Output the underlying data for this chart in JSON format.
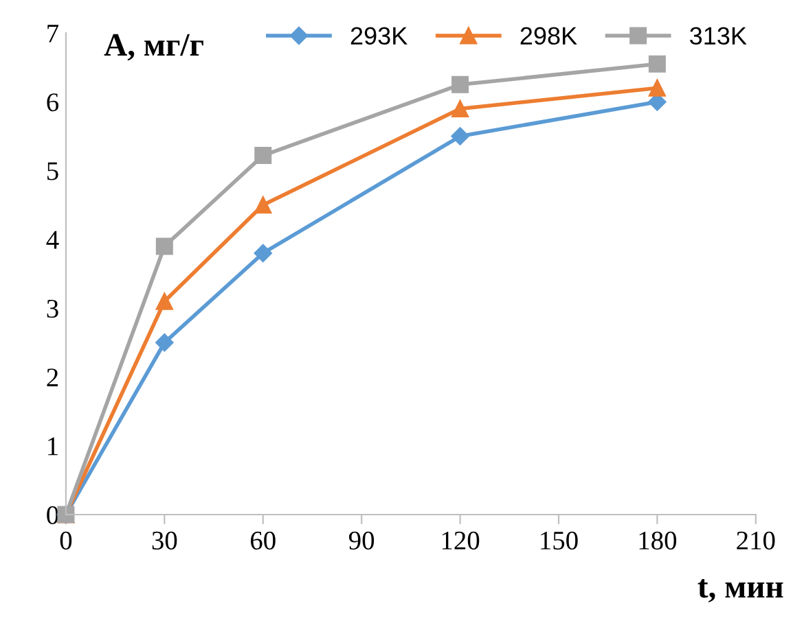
{
  "chart_data": {
    "type": "line",
    "xlabel": "t, мин",
    "ylabel": "A, мг/г",
    "x": [
      0,
      30,
      60,
      120,
      180
    ],
    "series": [
      {
        "name": "293K",
        "color": "#5b9bd5",
        "marker": "diamond",
        "values": [
          0,
          2.5,
          3.8,
          5.5,
          6.0
        ]
      },
      {
        "name": "298K",
        "color": "#ed7d31",
        "marker": "triangle",
        "values": [
          0,
          3.1,
          4.5,
          5.9,
          6.2
        ]
      },
      {
        "name": "313K",
        "color": "#a5a5a5",
        "marker": "square",
        "values": [
          0,
          3.9,
          5.22,
          6.25,
          6.55
        ]
      }
    ],
    "xlim": [
      0,
      210
    ],
    "xticks": [
      0,
      30,
      60,
      90,
      120,
      150,
      180,
      210
    ],
    "ylim": [
      0,
      7
    ],
    "yticks": [
      0,
      1,
      2,
      3,
      4,
      5,
      6,
      7
    ],
    "grid": false,
    "legend": "top"
  }
}
